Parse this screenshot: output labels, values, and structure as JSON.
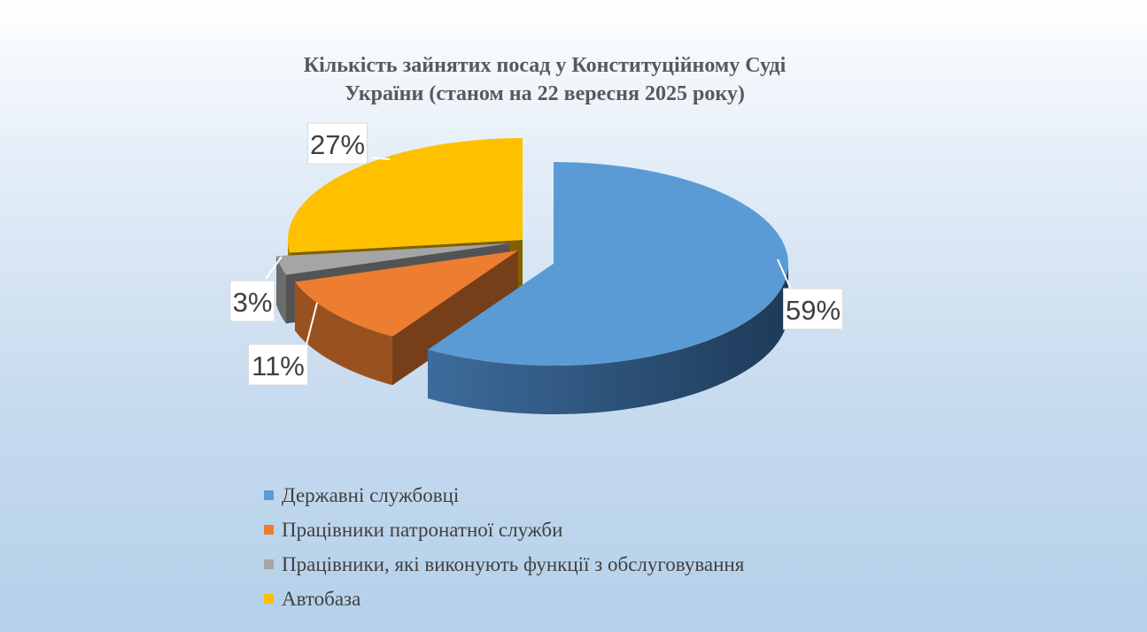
{
  "chart_data": {
    "type": "pie",
    "title_line1": "Кількість зайнятих посад у Конституційному Суді",
    "title_line2": "України (станом на 22 вересня 2025 року)",
    "categories": [
      "Державні службовці",
      "Працівники патронатної служби",
      "Працівники, які виконують функції з обслуговування",
      "Автобаза"
    ],
    "values": [
      59,
      11,
      3,
      27
    ],
    "labels": [
      "59%",
      "11%",
      "3%",
      "27%"
    ],
    "colors": [
      "#5b9bd5",
      "#ed7d31",
      "#a5a5a5",
      "#ffc000"
    ],
    "legend_position": "bottom",
    "exploded": true
  }
}
